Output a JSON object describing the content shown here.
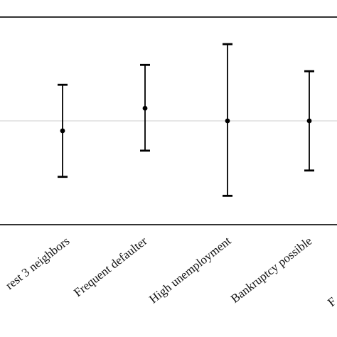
{
  "chart_data": {
    "type": "scatter",
    "subtype": "error-bar",
    "title": "",
    "xlabel": "",
    "ylabel": "",
    "categories": [
      "...rest 3 neighbors",
      "Frequent defaulter",
      "High unemployment",
      "Bankruptcy possible",
      "F..."
    ],
    "visible_tick_labels": [
      "rest 3 neighbors",
      "Frequent defaulter",
      "High unemployment",
      "Bankruptcy possible",
      "F"
    ],
    "points": [
      {
        "category": "...rest 3 neighbors",
        "estimate": -0.11,
        "lower": -0.62,
        "upper": 0.4
      },
      {
        "category": "Frequent defaulter",
        "estimate": 0.14,
        "lower": -0.33,
        "upper": 0.62
      },
      {
        "category": "High unemployment",
        "estimate": 0.0,
        "lower": -0.83,
        "upper": 0.85
      },
      {
        "category": "Bankruptcy possible",
        "estimate": 0.0,
        "lower": -0.55,
        "upper": 0.55
      }
    ],
    "reference_line": 0,
    "ylim": [
      -1.15,
      1.15
    ],
    "grid": false,
    "legend": "none",
    "colors": {
      "points": "#000000",
      "error_bars": "#000000",
      "reference_line": "#cfcfcf",
      "frame": "#000000"
    }
  }
}
